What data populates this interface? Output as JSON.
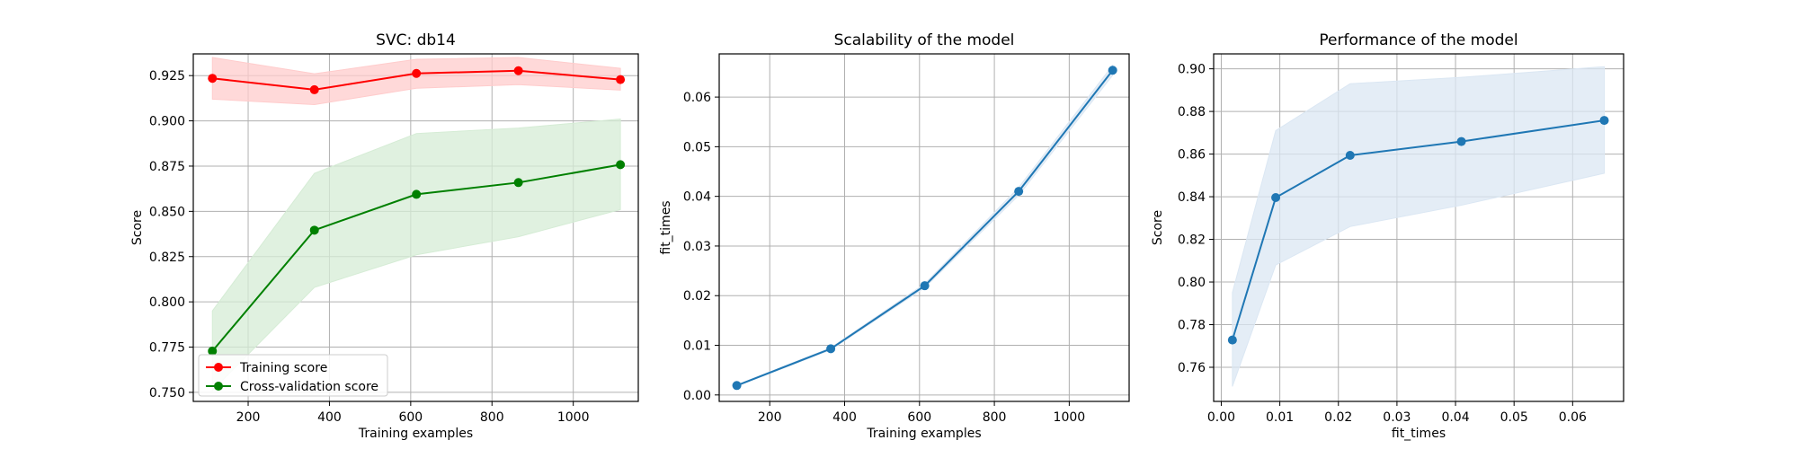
{
  "chart_data": [
    {
      "type": "line",
      "title": "SVC: db14",
      "xlabel": "Training examples",
      "ylabel": "Score",
      "xlim": [
        65,
        1160
      ],
      "ylim": [
        0.745,
        0.937
      ],
      "xticks": [
        200,
        400,
        600,
        800,
        1000
      ],
      "xtick_labels": [
        "200",
        "400",
        "600",
        "800",
        "1000"
      ],
      "yticks": [
        0.75,
        0.775,
        0.8,
        0.825,
        0.85,
        0.875,
        0.9,
        0.925
      ],
      "ytick_labels": [
        "0.750",
        "0.775",
        "0.800",
        "0.825",
        "0.850",
        "0.875",
        "0.900",
        "0.925"
      ],
      "grid": true,
      "legend": "lower-left",
      "x": [
        112,
        363,
        614,
        865,
        1116
      ],
      "series": [
        {
          "name": "Training score",
          "color": "#ff0000",
          "fill": "#ffcccc",
          "values": [
            0.9235,
            0.9172,
            0.9262,
            0.9277,
            0.9228
          ],
          "lower": [
            0.912,
            0.909,
            0.918,
            0.92,
            0.917
          ],
          "upper": [
            0.935,
            0.926,
            0.934,
            0.935,
            0.929
          ]
        },
        {
          "name": "Cross-validation score",
          "color": "#008000",
          "fill": "#d5ecd5",
          "values": [
            0.7728,
            0.8396,
            0.8594,
            0.8659,
            0.8758
          ],
          "lower": [
            0.751,
            0.808,
            0.826,
            0.836,
            0.851
          ],
          "upper": [
            0.795,
            0.871,
            0.893,
            0.896,
            0.901
          ]
        }
      ]
    },
    {
      "type": "line",
      "title": "Scalability of the model",
      "xlabel": "Training examples",
      "ylabel": "fit_times",
      "xlim": [
        65,
        1160
      ],
      "ylim": [
        -0.0013,
        0.0687
      ],
      "xticks": [
        200,
        400,
        600,
        800,
        1000
      ],
      "xtick_labels": [
        "200",
        "400",
        "600",
        "800",
        "1000"
      ],
      "yticks": [
        0,
        0.01,
        0.02,
        0.03,
        0.04,
        0.05,
        0.06
      ],
      "ytick_labels": [
        "0.00",
        "0.01",
        "0.02",
        "0.03",
        "0.04",
        "0.05",
        "0.06"
      ],
      "grid": true,
      "x": [
        112,
        363,
        614,
        865,
        1116
      ],
      "series": [
        {
          "color": "#1f77b4",
          "fill": "#dbe7f3",
          "values": [
            0.0019,
            0.0093,
            0.022,
            0.041,
            0.0654
          ],
          "lower": [
            0.0018,
            0.0091,
            0.0216,
            0.0402,
            0.0644
          ],
          "upper": [
            0.002,
            0.0095,
            0.0224,
            0.0418,
            0.0664
          ]
        }
      ]
    },
    {
      "type": "line",
      "title": "Performance of the model",
      "xlabel": "fit_times",
      "ylabel": "Score",
      "xlim": [
        -0.0013,
        0.0687
      ],
      "ylim": [
        0.744,
        0.907
      ],
      "xticks": [
        0,
        0.01,
        0.02,
        0.03,
        0.04,
        0.05,
        0.06
      ],
      "xtick_labels": [
        "0.00",
        "0.01",
        "0.02",
        "0.03",
        "0.04",
        "0.05",
        "0.06"
      ],
      "yticks": [
        0.76,
        0.78,
        0.8,
        0.82,
        0.84,
        0.86,
        0.88,
        0.9
      ],
      "ytick_labels": [
        "0.76",
        "0.78",
        "0.80",
        "0.82",
        "0.84",
        "0.86",
        "0.88",
        "0.90"
      ],
      "grid": true,
      "x": [
        0.0019,
        0.0093,
        0.022,
        0.041,
        0.0654
      ],
      "series": [
        {
          "color": "#1f77b4",
          "fill": "#dbe7f3",
          "values": [
            0.7728,
            0.8396,
            0.8594,
            0.8659,
            0.8758
          ],
          "lower": [
            0.751,
            0.808,
            0.826,
            0.836,
            0.851
          ],
          "upper": [
            0.795,
            0.871,
            0.893,
            0.896,
            0.901
          ]
        }
      ]
    }
  ]
}
